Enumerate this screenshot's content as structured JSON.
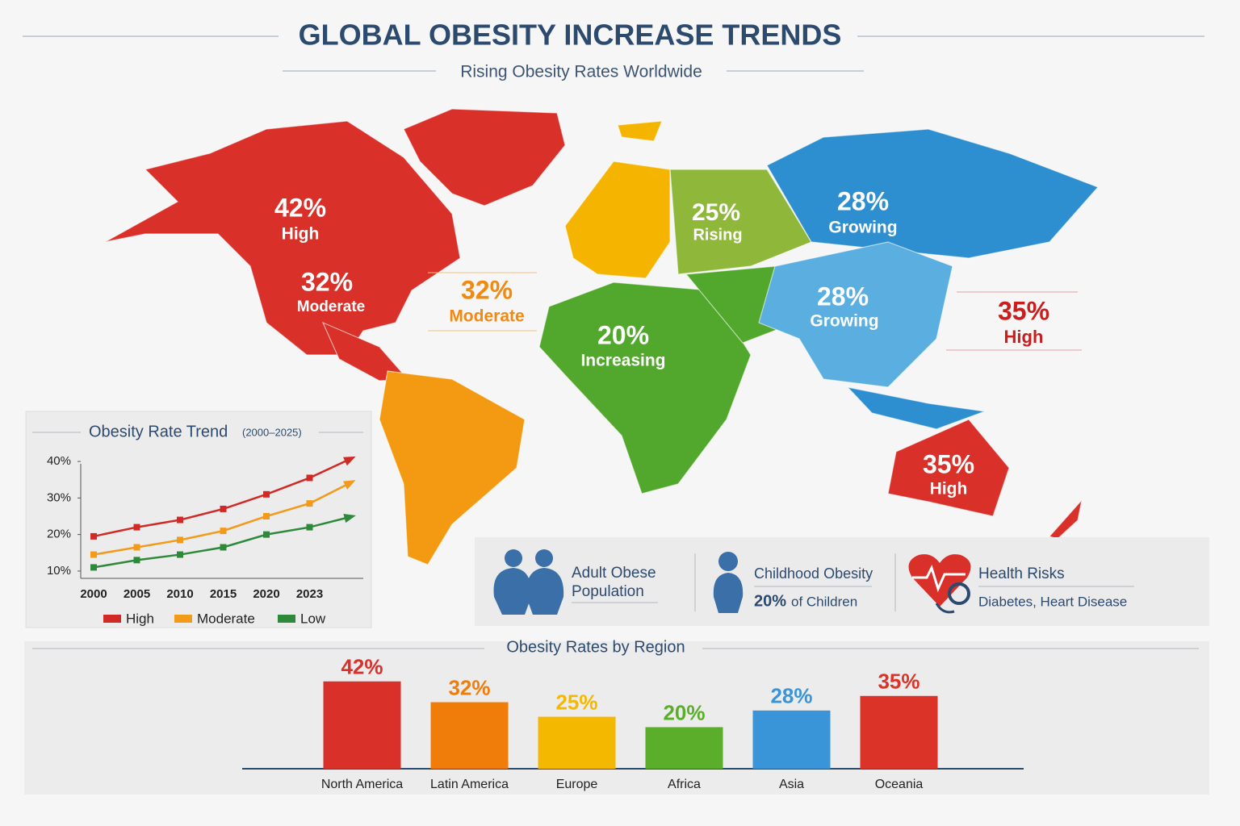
{
  "header": {
    "title": "GLOBAL OBESITY INCREASE TRENDS",
    "subtitle": "Rising Obesity Rates Worldwide"
  },
  "map": {
    "labels": [
      {
        "value": "42%",
        "status": "High"
      },
      {
        "value": "32%",
        "status": "Moderate"
      },
      {
        "value": "32%",
        "status": "Moderate"
      },
      {
        "value": "25%",
        "status": "Rising"
      },
      {
        "value": "20%",
        "status": "Increasing"
      },
      {
        "value": "28%",
        "status": "Growing"
      },
      {
        "value": "28%",
        "status": "Growing"
      },
      {
        "value": "35%",
        "status": "High"
      },
      {
        "value": "35%",
        "status": "High"
      }
    ]
  },
  "stats": [
    {
      "title_lines": [
        "Adult Obese",
        "Population"
      ]
    },
    {
      "title": "Childhood Obesity",
      "highlight": "20%",
      "detail": "of Children"
    },
    {
      "title": "Health Risks",
      "detail": "Diabetes, Heart Disease"
    }
  ],
  "chart_data": [
    {
      "type": "line",
      "title": "Obesity Rate Trend",
      "subtitle": "(2000–2025)",
      "categories": [
        "2000",
        "2005",
        "2010",
        "2015",
        "2020",
        "2023",
        null
      ],
      "series": [
        {
          "name": "High",
          "color": "#d12a26",
          "values": [
            19.5,
            22,
            24,
            27,
            31,
            35.5,
            41
          ]
        },
        {
          "name": "Moderate",
          "color": "#f29a1a",
          "values": [
            14.5,
            16.5,
            18.5,
            21,
            25,
            28.5,
            34.5
          ]
        },
        {
          "name": "Low",
          "color": "#2e8a3a",
          "values": [
            11,
            13,
            14.5,
            16.5,
            20,
            22,
            25
          ]
        }
      ],
      "ylim": [
        8,
        42
      ],
      "yticks": [
        {
          "value": 10,
          "label": "10%"
        },
        {
          "value": 20,
          "label": "20%"
        },
        {
          "value": 30,
          "label": "30%"
        },
        {
          "value": 40,
          "label": "40%"
        }
      ]
    },
    {
      "type": "bar",
      "title": "Obesity Rates by Region",
      "categories": [
        "North America",
        "Latin America",
        "Europe",
        "Africa",
        "Asia",
        "Oceania"
      ],
      "values": [
        42,
        32,
        25,
        20,
        28,
        35
      ],
      "value_labels": [
        "42%",
        "32%",
        "25%",
        "20%",
        "28%",
        "35%"
      ],
      "colors": [
        "#d9302a",
        "#f07d0a",
        "#f5b800",
        "#5aae2a",
        "#3a94d8",
        "#dc3328"
      ],
      "ylim": [
        0,
        45
      ]
    }
  ]
}
